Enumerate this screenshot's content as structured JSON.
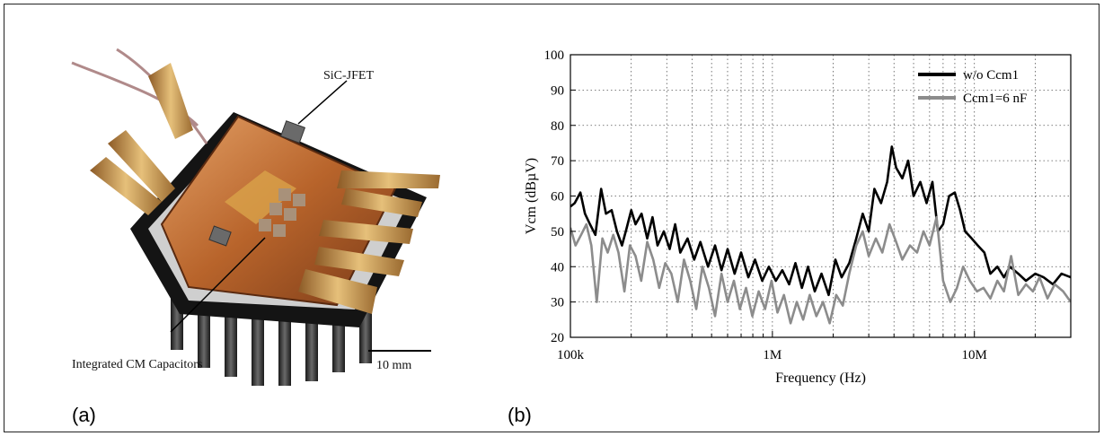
{
  "panels": {
    "a_label": "(a)",
    "b_label": "(b)"
  },
  "photo": {
    "callout_top": "SiC-JFET",
    "callout_bottom": "Integrated CM Capacitors",
    "scale_bar": "10 mm"
  },
  "chart_data": {
    "type": "line",
    "title": "",
    "xlabel": "Frequency (Hz)",
    "ylabel": "Vcm (dBµV)",
    "x_scale": "log",
    "xlim": [
      100000,
      30000000
    ],
    "ylim": [
      20,
      100
    ],
    "x_ticks": [
      {
        "value": 100000,
        "label": "100k"
      },
      {
        "value": 1000000,
        "label": "1M"
      },
      {
        "value": 10000000,
        "label": "10M"
      }
    ],
    "y_ticks": [
      20,
      30,
      40,
      50,
      60,
      70,
      80,
      90,
      100
    ],
    "grid": "dotted",
    "legend_position": "top-right",
    "series": [
      {
        "name": "w/o Ccm1",
        "color": "#000000",
        "x": [
          100000,
          105000,
          112000,
          118000,
          125000,
          133000,
          142000,
          150000,
          160000,
          170000,
          180000,
          190000,
          200000,
          210000,
          225000,
          240000,
          255000,
          270000,
          290000,
          310000,
          330000,
          350000,
          380000,
          410000,
          440000,
          480000,
          520000,
          560000,
          600000,
          650000,
          700000,
          760000,
          820000,
          890000,
          960000,
          1040000,
          1120000,
          1210000,
          1300000,
          1400000,
          1500000,
          1620000,
          1750000,
          1900000,
          2050000,
          2200000,
          2400000,
          2600000,
          2800000,
          3000000,
          3200000,
          3450000,
          3700000,
          3900000,
          4100000,
          4400000,
          4700000,
          5000000,
          5400000,
          5800000,
          6200000,
          6600000,
          7000000,
          7500000,
          8000000,
          8500000,
          9000000,
          9700000,
          10400000,
          11200000,
          12000000,
          13000000,
          14000000,
          15000000,
          16500000,
          18000000,
          20000000,
          22000000,
          24500000,
          27000000,
          30000000
        ],
        "y": [
          57,
          58,
          61,
          55,
          52,
          49,
          62,
          55,
          56,
          50,
          46,
          51,
          56,
          52,
          55,
          48,
          54,
          46,
          50,
          45,
          52,
          44,
          48,
          42,
          47,
          40,
          46,
          39,
          45,
          38,
          44,
          37,
          42,
          36,
          40,
          36,
          39,
          35,
          41,
          34,
          40,
          33,
          38,
          32,
          42,
          37,
          41,
          48,
          55,
          50,
          62,
          58,
          64,
          74,
          68,
          65,
          70,
          60,
          64,
          58,
          64,
          50,
          52,
          60,
          61,
          56,
          50,
          48,
          46,
          44,
          38,
          40,
          37,
          40,
          38,
          36,
          38,
          37,
          35,
          38,
          37
        ]
      },
      {
        "name": "Ccm1=6 nF",
        "color": "#8c8c8c",
        "x": [
          100000,
          106000,
          113000,
          120000,
          127000,
          135000,
          144000,
          153000,
          163000,
          173000,
          185000,
          197000,
          210000,
          224000,
          240000,
          257000,
          275000,
          295000,
          316000,
          340000,
          365000,
          392000,
          420000,
          450000,
          485000,
          520000,
          560000,
          600000,
          645000,
          690000,
          740000,
          795000,
          855000,
          920000,
          990000,
          1060000,
          1140000,
          1230000,
          1320000,
          1420000,
          1530000,
          1650000,
          1780000,
          1920000,
          2070000,
          2230000,
          2400000,
          2600000,
          2800000,
          3000000,
          3250000,
          3500000,
          3800000,
          4100000,
          4400000,
          4800000,
          5200000,
          5600000,
          6000000,
          6500000,
          7000000,
          7600000,
          8200000,
          8800000,
          9500000,
          10300000,
          11100000,
          12000000,
          13000000,
          14000000,
          15200000,
          16500000,
          18000000,
          19500000,
          21000000,
          23000000,
          25000000,
          27500000,
          30000000
        ],
        "y": [
          51,
          46,
          49,
          52,
          46,
          30,
          48,
          44,
          49,
          44,
          33,
          46,
          43,
          36,
          47,
          42,
          34,
          41,
          38,
          30,
          42,
          36,
          28,
          40,
          34,
          26,
          38,
          30,
          36,
          28,
          34,
          26,
          33,
          28,
          36,
          27,
          32,
          24,
          30,
          25,
          32,
          26,
          30,
          24,
          32,
          29,
          38,
          46,
          50,
          43,
          48,
          44,
          52,
          47,
          42,
          46,
          44,
          50,
          46,
          54,
          36,
          30,
          34,
          40,
          36,
          33,
          34,
          31,
          36,
          33,
          43,
          32,
          35,
          33,
          37,
          31,
          35,
          33,
          30
        ]
      }
    ]
  }
}
